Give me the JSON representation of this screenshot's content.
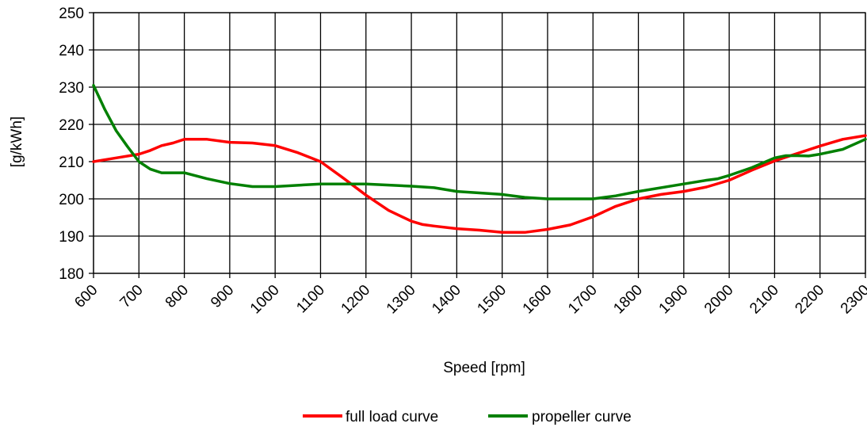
{
  "chart_data": {
    "type": "line",
    "title": "",
    "xlabel": "Speed [rpm]",
    "ylabel": "[g/kWh]",
    "xlim": [
      600,
      2300
    ],
    "ylim": [
      180,
      250
    ],
    "x_ticks": [
      600,
      700,
      800,
      900,
      1000,
      1100,
      1200,
      1300,
      1400,
      1500,
      1600,
      1700,
      1800,
      1900,
      2000,
      2100,
      2200,
      2300
    ],
    "y_ticks": [
      180,
      190,
      200,
      210,
      220,
      230,
      240,
      250
    ],
    "grid": true,
    "legend_position": "bottom-center",
    "series": [
      {
        "name": "full load curve",
        "color": "#ff0000",
        "points": [
          [
            600,
            210
          ],
          [
            650,
            211
          ],
          [
            700,
            212
          ],
          [
            725,
            213
          ],
          [
            750,
            214.3
          ],
          [
            775,
            215
          ],
          [
            800,
            216
          ],
          [
            850,
            216
          ],
          [
            900,
            215.2
          ],
          [
            950,
            215
          ],
          [
            1000,
            214.3
          ],
          [
            1050,
            212.4
          ],
          [
            1100,
            210
          ],
          [
            1150,
            205.6
          ],
          [
            1200,
            201
          ],
          [
            1250,
            196.9
          ],
          [
            1300,
            194
          ],
          [
            1325,
            193.1
          ],
          [
            1350,
            192.7
          ],
          [
            1400,
            192
          ],
          [
            1450,
            191.6
          ],
          [
            1500,
            191
          ],
          [
            1550,
            191
          ],
          [
            1600,
            191.8
          ],
          [
            1650,
            193
          ],
          [
            1700,
            195.2
          ],
          [
            1750,
            198
          ],
          [
            1800,
            200
          ],
          [
            1850,
            201.2
          ],
          [
            1900,
            202
          ],
          [
            1950,
            203.2
          ],
          [
            2000,
            205
          ],
          [
            2050,
            207.7
          ],
          [
            2100,
            210.2
          ],
          [
            2150,
            212.2
          ],
          [
            2200,
            214.2
          ],
          [
            2250,
            216
          ],
          [
            2300,
            217
          ]
        ]
      },
      {
        "name": "propeller curve",
        "color": "#008000",
        "points": [
          [
            600,
            230.5
          ],
          [
            625,
            224
          ],
          [
            650,
            218.3
          ],
          [
            675,
            214
          ],
          [
            700,
            210
          ],
          [
            725,
            208
          ],
          [
            750,
            207
          ],
          [
            800,
            207
          ],
          [
            850,
            205.4
          ],
          [
            900,
            204.1
          ],
          [
            950,
            203.3
          ],
          [
            1000,
            203.3
          ],
          [
            1100,
            204
          ],
          [
            1200,
            204
          ],
          [
            1300,
            203.4
          ],
          [
            1350,
            203
          ],
          [
            1400,
            202
          ],
          [
            1500,
            201.2
          ],
          [
            1550,
            200.4
          ],
          [
            1600,
            200
          ],
          [
            1700,
            200
          ],
          [
            1750,
            200.8
          ],
          [
            1800,
            202
          ],
          [
            1900,
            204
          ],
          [
            1950,
            205
          ],
          [
            1975,
            205.4
          ],
          [
            2000,
            206.3
          ],
          [
            2050,
            208.4
          ],
          [
            2100,
            211
          ],
          [
            2125,
            211.6
          ],
          [
            2150,
            211.6
          ],
          [
            2175,
            211.5
          ],
          [
            2200,
            212
          ],
          [
            2250,
            213.3
          ],
          [
            2300,
            216
          ]
        ]
      }
    ]
  }
}
